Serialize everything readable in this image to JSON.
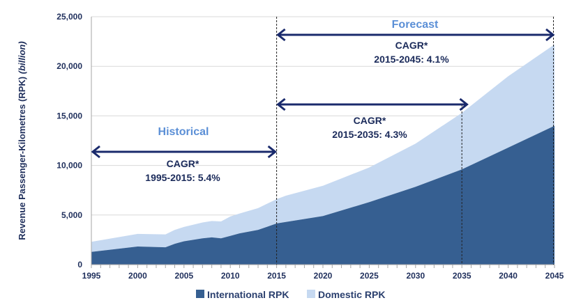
{
  "chart_data": {
    "type": "area",
    "stacked": true,
    "ylabel": "Revenue Passenger-Kilometres (RPK)",
    "ylabel_unit": "(billion)",
    "xlim": [
      1995,
      2045
    ],
    "ylim": [
      0,
      25000
    ],
    "x_ticks": [
      "1995",
      "2000",
      "2005",
      "2010",
      "2015",
      "2020",
      "2025",
      "2030",
      "2035",
      "2040",
      "2045"
    ],
    "y_ticks": [
      "0",
      "5,000",
      "10,000",
      "15,000",
      "20,000",
      "25,000"
    ],
    "grid": "horizontal",
    "legend_placement": "bottom",
    "x": [
      1995,
      2000,
      2003,
      2004,
      2005,
      2007,
      2008,
      2009,
      2010,
      2011,
      2013,
      2015,
      2016,
      2020,
      2025,
      2030,
      2035,
      2040,
      2045
    ],
    "series": [
      {
        "name": "International RPK",
        "color": "#365f91",
        "values": [
          1280,
          1830,
          1750,
          2100,
          2350,
          2650,
          2750,
          2650,
          2900,
          3150,
          3500,
          4150,
          4300,
          4900,
          6300,
          7850,
          9600,
          11800,
          14000
        ]
      },
      {
        "name": "Domestic RPK",
        "color": "#c6d9f1",
        "values": [
          1020,
          1270,
          1300,
          1400,
          1450,
          1600,
          1650,
          1700,
          1950,
          2000,
          2200,
          2450,
          2650,
          3050,
          3500,
          4350,
          5700,
          7200,
          8200
        ]
      }
    ],
    "markers": [
      2015,
      2035,
      2045
    ],
    "annotations": {
      "historical": {
        "label": "Historical",
        "cagr": "CAGR*",
        "text": "1995-2015: 5.4%",
        "from": 1995,
        "to": 2015
      },
      "forecast": {
        "label": "Forecast",
        "cagr": "CAGR*",
        "text": "2015-2045: 4.1%",
        "from": 2015,
        "to": 2045
      },
      "mid": {
        "cagr": "CAGR*",
        "text": "2015-2035: 4.3%",
        "from": 2015,
        "to": 2035
      }
    }
  }
}
